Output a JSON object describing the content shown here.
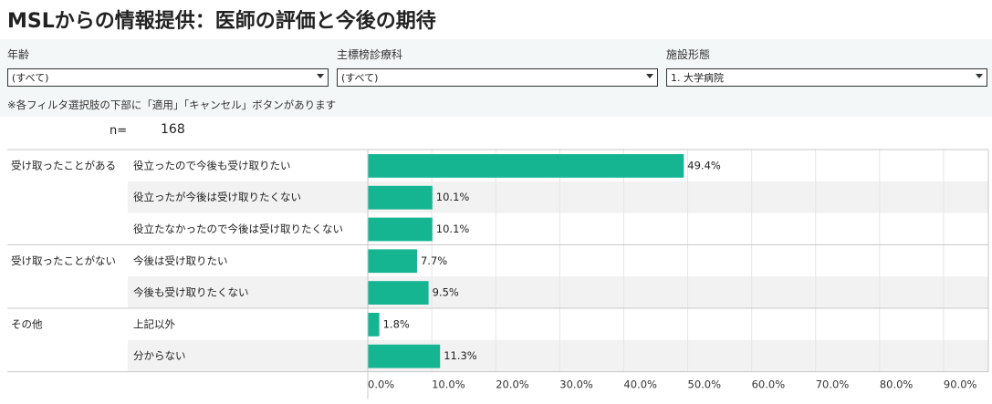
{
  "title": "MSLからの情報提供：医師の評価と今後の期待",
  "filters": [
    {
      "label": "年齢",
      "value": "(すべて)"
    },
    {
      "label": "主標榜診療科",
      "value": "(すべて)"
    },
    {
      "label": "施設形態",
      "value": "1. 大学病院"
    }
  ],
  "note": "※各フィルタ選択肢の下部に「適用」「キャンセル」ボタンがあります",
  "n": {
    "label": "n=",
    "value": "168"
  },
  "colors": {
    "bar": "#16b592",
    "alt_row": "#f2f2f2",
    "grid": "#e6e6e6"
  },
  "chart_data": {
    "type": "bar",
    "orientation": "horizontal",
    "groups": [
      {
        "name": "受け取ったことがある",
        "rows": [
          {
            "label": "役立ったので今後も受け取りたい",
            "value": 49.4,
            "display": "49.4%"
          },
          {
            "label": "役立ったが今後は受け取りたくない",
            "value": 10.1,
            "display": "10.1%"
          },
          {
            "label": "役立たなかったので今後は受け取りたくない",
            "value": 10.1,
            "display": "10.1%"
          }
        ]
      },
      {
        "name": "受け取ったことがない",
        "rows": [
          {
            "label": "今後は受け取りたい",
            "value": 7.7,
            "display": "7.7%"
          },
          {
            "label": "今後も受け取りたくない",
            "value": 9.5,
            "display": "9.5%"
          }
        ]
      },
      {
        "name": "その他",
        "rows": [
          {
            "label": "上記以外",
            "value": 1.8,
            "display": "1.8%"
          },
          {
            "label": "分からない",
            "value": 11.3,
            "display": "11.3%"
          }
        ]
      }
    ],
    "xlim": [
      0,
      97
    ],
    "ticks": [
      {
        "value": 0,
        "label": "0.0%"
      },
      {
        "value": 10,
        "label": "10.0%"
      },
      {
        "value": 20,
        "label": "20.0%"
      },
      {
        "value": 30,
        "label": "30.0%"
      },
      {
        "value": 40,
        "label": "40.0%"
      },
      {
        "value": 50,
        "label": "50.0%"
      },
      {
        "value": 60,
        "label": "60.0%"
      },
      {
        "value": 70,
        "label": "70.0%"
      },
      {
        "value": 80,
        "label": "80.0%"
      },
      {
        "value": 90,
        "label": "90.0%"
      }
    ],
    "grid": true
  }
}
